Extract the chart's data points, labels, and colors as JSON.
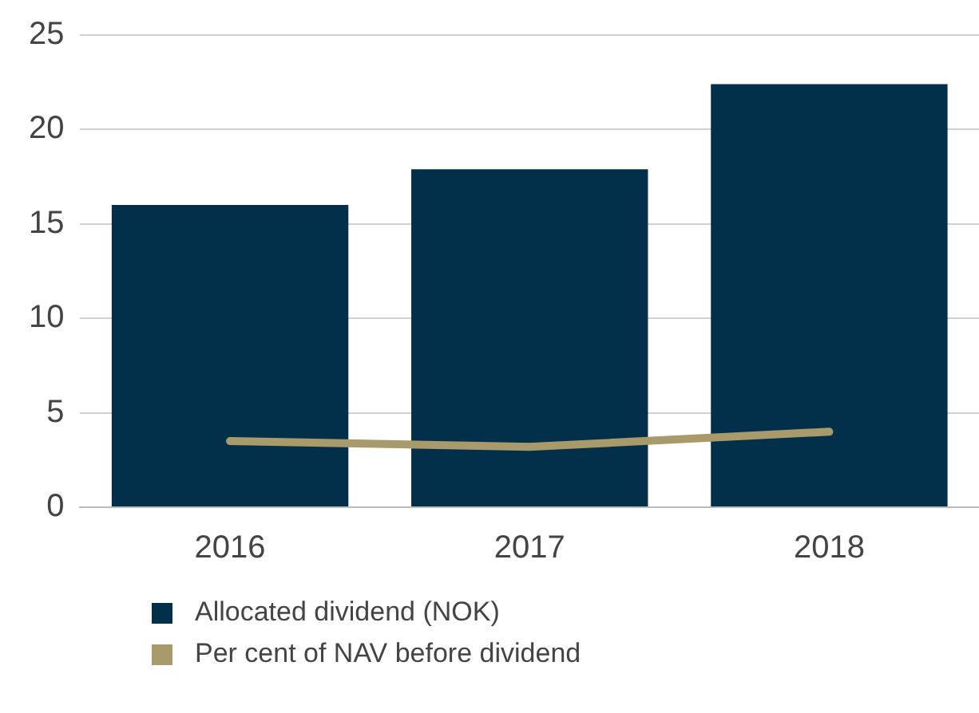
{
  "chart_data": {
    "type": "bar",
    "categories": [
      "2016",
      "2017",
      "2018"
    ],
    "series": [
      {
        "name": "Allocated dividend (NOK)",
        "color": "#02304a",
        "values": [
          16,
          17.9,
          22.4
        ]
      },
      {
        "name": "Per cent of NAV before dividend",
        "type": "line",
        "color": "#a99a6b",
        "values": [
          3.5,
          3.2,
          4.0
        ]
      }
    ],
    "ylim": [
      0,
      25
    ],
    "yticks": [
      0,
      5,
      10,
      15,
      20,
      25
    ],
    "grid": "y",
    "legend": "bottom",
    "marker": "none"
  }
}
